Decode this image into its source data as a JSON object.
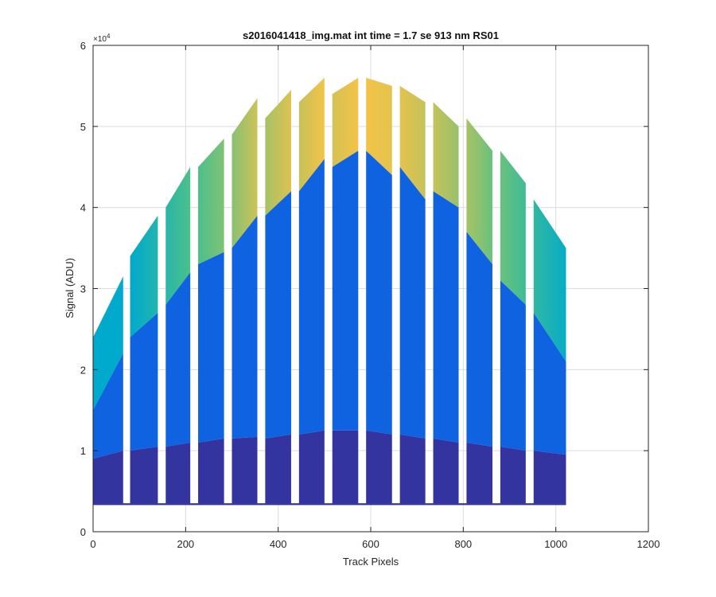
{
  "chart_data": {
    "type": "area",
    "title": "s2016041418_img.mat int time = 1.7 se  913 nm RS01",
    "xlabel": "Track Pixels",
    "ylabel": "Signal (ADU)",
    "y_exponent_label": "×10",
    "y_exponent_power": "4",
    "xlim": [
      0,
      1200
    ],
    "ylim": [
      0,
      60000
    ],
    "x_ticks": [
      0,
      200,
      400,
      600,
      800,
      1000,
      1200
    ],
    "y_ticks": [
      0,
      10000,
      20000,
      30000,
      40000,
      50000,
      60000
    ],
    "x_tick_labels": [
      "0",
      "200",
      "400",
      "600",
      "800",
      "1000",
      "1200"
    ],
    "y_tick_labels": [
      "0",
      "1",
      "2",
      "3",
      "4",
      "5",
      "6"
    ],
    "grid": true,
    "baseline": 3500,
    "segments": [
      {
        "x": [
          0,
          65
        ],
        "low": [
          9000,
          10000
        ],
        "mid": [
          15000,
          22000
        ],
        "top": [
          24000,
          31500
        ]
      },
      {
        "x": [
          80,
          140
        ],
        "low": [
          10000,
          10500
        ],
        "mid": [
          24000,
          27000
        ],
        "top": [
          34000,
          39000
        ]
      },
      {
        "x": [
          157,
          210
        ],
        "low": [
          10500,
          11000
        ],
        "mid": [
          28000,
          32000
        ],
        "top": [
          40000,
          45000
        ]
      },
      {
        "x": [
          227,
          283
        ],
        "low": [
          11000,
          11500
        ],
        "mid": [
          33000,
          34500
        ],
        "top": [
          45000,
          48500
        ]
      },
      {
        "x": [
          300,
          355
        ],
        "low": [
          11500,
          11700
        ],
        "mid": [
          35000,
          39000
        ],
        "top": [
          49000,
          53500
        ]
      },
      {
        "x": [
          372,
          428
        ],
        "low": [
          11500,
          12000
        ],
        "mid": [
          39000,
          42000
        ],
        "top": [
          51000,
          54500
        ]
      },
      {
        "x": [
          445,
          500
        ],
        "low": [
          12000,
          12500
        ],
        "mid": [
          42000,
          46000
        ],
        "top": [
          53000,
          56000
        ]
      },
      {
        "x": [
          517,
          573
        ],
        "low": [
          12500,
          12500
        ],
        "mid": [
          45000,
          47000
        ],
        "top": [
          54000,
          56000
        ]
      },
      {
        "x": [
          590,
          646
        ],
        "low": [
          12500,
          12000
        ],
        "mid": [
          47000,
          44000
        ],
        "top": [
          56000,
          55000
        ]
      },
      {
        "x": [
          663,
          718
        ],
        "low": [
          12000,
          11500
        ],
        "mid": [
          45000,
          41000
        ],
        "top": [
          55000,
          53000
        ]
      },
      {
        "x": [
          735,
          790
        ],
        "low": [
          11500,
          11000
        ],
        "mid": [
          42000,
          40000
        ],
        "top": [
          53000,
          50000
        ]
      },
      {
        "x": [
          807,
          863
        ],
        "low": [
          11000,
          10500
        ],
        "mid": [
          37000,
          33000
        ],
        "top": [
          51000,
          47000
        ]
      },
      {
        "x": [
          880,
          935
        ],
        "low": [
          10500,
          10000
        ],
        "mid": [
          31000,
          28000
        ],
        "top": [
          47000,
          43000
        ]
      },
      {
        "x": [
          952,
          1022
        ],
        "low": [
          10000,
          9500
        ],
        "mid": [
          27000,
          21000
        ],
        "top": [
          41000,
          35000
        ]
      }
    ],
    "colors": {
      "baseline": "#2d2f91",
      "low": "#3434a0",
      "mid": "#0f63e0",
      "top_low": "#00aacc",
      "top_mid": "#4cc08a",
      "top_high": "#f3c348",
      "axis": "#262626",
      "grid": "#dcdcdc"
    }
  }
}
